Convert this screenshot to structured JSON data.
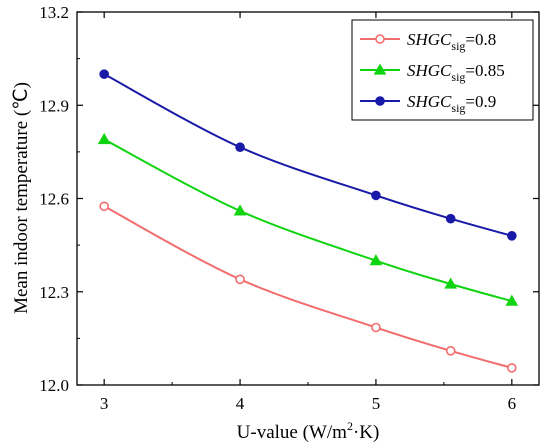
{
  "chart_data": {
    "type": "line",
    "xlabel_prefix": "U-value (W/m",
    "xlabel_sup": "2",
    "xlabel_suffix": "·K)",
    "ylabel": "Mean indoor temperature (℃)",
    "xlim": [
      2.8,
      6.2
    ],
    "ylim": [
      12.0,
      13.2
    ],
    "xticks": [
      3,
      4,
      5,
      6
    ],
    "yticks": [
      12.0,
      12.3,
      12.6,
      12.9,
      13.2
    ],
    "ytick_labels": [
      "12.0",
      "12.3",
      "12.6",
      "12.9",
      "13.2"
    ],
    "x": [
      3,
      4,
      5,
      5.55,
      6
    ],
    "legend_position": "top-right",
    "series": [
      {
        "name_main": "SHGC",
        "name_sub": "sig",
        "name_value": "=0.8",
        "color": "#f26d6d",
        "marker": "open-circle",
        "values": [
          12.575,
          12.34,
          12.185,
          12.11,
          12.055
        ]
      },
      {
        "name_main": "SHGC",
        "name_sub": "sig",
        "name_value": "=0.85",
        "color": "#11d411",
        "marker": "triangle",
        "values": [
          12.79,
          12.56,
          12.4,
          12.325,
          12.27
        ]
      },
      {
        "name_main": "SHGC",
        "name_sub": "sig",
        "name_value": "=0.9",
        "color": "#1a1aa8",
        "marker": "filled-circle",
        "values": [
          13.0,
          12.765,
          12.61,
          12.535,
          12.48
        ]
      }
    ]
  }
}
